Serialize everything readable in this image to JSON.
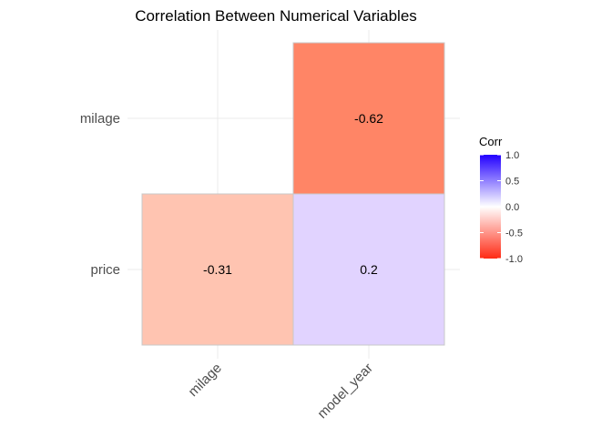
{
  "chart_data": {
    "type": "heatmap",
    "title": "Correlation Between Numerical Variables",
    "x_categories": [
      "milage",
      "model_year"
    ],
    "y_categories": [
      "price",
      "milage"
    ],
    "cells": [
      {
        "x": "model_year",
        "y": "milage",
        "value": -0.62,
        "label": "-0.62",
        "color": "#ff8566"
      },
      {
        "x": "milage",
        "y": "price",
        "value": -0.31,
        "label": "-0.31",
        "color": "#ffc4b1"
      },
      {
        "x": "model_year",
        "y": "price",
        "value": 0.2,
        "label": "0.2",
        "color": "#e1d3ff"
      }
    ],
    "legend": {
      "title": "Corr",
      "placement": "right",
      "range": [
        -1,
        1
      ],
      "ticks": [
        "1.0",
        "0.5",
        "0.0",
        "-0.5",
        "-1.0"
      ],
      "tick_values": [
        1.0,
        0.5,
        0.0,
        -0.5,
        -1.0
      ],
      "low_color": "#ff2a14",
      "mid_color": "#ffffff",
      "high_color": "#2200ff"
    },
    "grid": true
  }
}
